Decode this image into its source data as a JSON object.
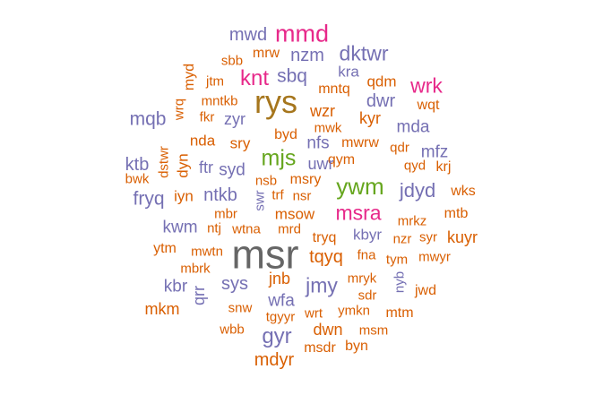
{
  "colors": {
    "orange": "#d95f02",
    "purple": "#7570b3",
    "magenta": "#e7298a",
    "green": "#66a61e",
    "gold": "#a6761d",
    "gray": "#666666"
  },
  "words": [
    {
      "text": "mwd",
      "color": "purple",
      "rot": false
    },
    {
      "text": "mmd",
      "color": "magenta",
      "rot": false
    },
    {
      "text": "sbb",
      "color": "orange",
      "rot": false
    },
    {
      "text": "mrw",
      "color": "orange",
      "rot": false
    },
    {
      "text": "nzm",
      "color": "purple",
      "rot": false
    },
    {
      "text": "dktwr",
      "color": "purple",
      "rot": false
    },
    {
      "text": "myd",
      "color": "orange",
      "rot": true
    },
    {
      "text": "knt",
      "color": "magenta",
      "rot": false
    },
    {
      "text": "sbq",
      "color": "purple",
      "rot": false
    },
    {
      "text": "kra",
      "color": "purple",
      "rot": false
    },
    {
      "text": "qdm",
      "color": "orange",
      "rot": false
    },
    {
      "text": "jtm",
      "color": "orange",
      "rot": false
    },
    {
      "text": "mntq",
      "color": "orange",
      "rot": false
    },
    {
      "text": "wrk",
      "color": "magenta",
      "rot": false
    },
    {
      "text": "mntkb",
      "color": "orange",
      "rot": false
    },
    {
      "text": "rys",
      "color": "gold",
      "rot": false
    },
    {
      "text": "dwr",
      "color": "purple",
      "rot": false
    },
    {
      "text": "wqt",
      "color": "orange",
      "rot": false
    },
    {
      "text": "wrq",
      "color": "orange",
      "rot": true
    },
    {
      "text": "mqb",
      "color": "purple",
      "rot": false
    },
    {
      "text": "fkr",
      "color": "orange",
      "rot": false
    },
    {
      "text": "zyr",
      "color": "purple",
      "rot": false
    },
    {
      "text": "wzr",
      "color": "orange",
      "rot": false
    },
    {
      "text": "kyr",
      "color": "orange",
      "rot": false
    },
    {
      "text": "mda",
      "color": "purple",
      "rot": false
    },
    {
      "text": "mwk",
      "color": "orange",
      "rot": false
    },
    {
      "text": "byd",
      "color": "orange",
      "rot": false
    },
    {
      "text": "nda",
      "color": "orange",
      "rot": false
    },
    {
      "text": "sry",
      "color": "orange",
      "rot": false
    },
    {
      "text": "nfs",
      "color": "purple",
      "rot": false
    },
    {
      "text": "mwrw",
      "color": "orange",
      "rot": false
    },
    {
      "text": "qdr",
      "color": "orange",
      "rot": false
    },
    {
      "text": "mfz",
      "color": "purple",
      "rot": false
    },
    {
      "text": "dstwr",
      "color": "orange",
      "rot": true
    },
    {
      "text": "mjs",
      "color": "green",
      "rot": false
    },
    {
      "text": "qym",
      "color": "orange",
      "rot": false
    },
    {
      "text": "ktb",
      "color": "purple",
      "rot": false
    },
    {
      "text": "dyn",
      "color": "orange",
      "rot": true
    },
    {
      "text": "ftr",
      "color": "purple",
      "rot": false
    },
    {
      "text": "uwr",
      "color": "purple",
      "rot": false
    },
    {
      "text": "qyd",
      "color": "orange",
      "rot": false
    },
    {
      "text": "krj",
      "color": "orange",
      "rot": false
    },
    {
      "text": "bwk",
      "color": "orange",
      "rot": false
    },
    {
      "text": "syd",
      "color": "purple",
      "rot": false
    },
    {
      "text": "nsb",
      "color": "orange",
      "rot": false
    },
    {
      "text": "msry",
      "color": "orange",
      "rot": false
    },
    {
      "text": "ywm",
      "color": "green",
      "rot": false
    },
    {
      "text": "jdyd",
      "color": "purple",
      "rot": false
    },
    {
      "text": "fryq",
      "color": "purple",
      "rot": false
    },
    {
      "text": "iyn",
      "color": "orange",
      "rot": false
    },
    {
      "text": "ntkb",
      "color": "purple",
      "rot": false
    },
    {
      "text": "trf",
      "color": "orange",
      "rot": false
    },
    {
      "text": "nsr",
      "color": "orange",
      "rot": false
    },
    {
      "text": "wks",
      "color": "orange",
      "rot": false
    },
    {
      "text": "swr",
      "color": "purple",
      "rot": true
    },
    {
      "text": "mbr",
      "color": "orange",
      "rot": false
    },
    {
      "text": "msow",
      "color": "orange",
      "rot": false
    },
    {
      "text": "msra",
      "color": "magenta",
      "rot": false
    },
    {
      "text": "mtb",
      "color": "orange",
      "rot": false
    },
    {
      "text": "kwm",
      "color": "purple",
      "rot": false
    },
    {
      "text": "ntj",
      "color": "orange",
      "rot": false
    },
    {
      "text": "wtna",
      "color": "orange",
      "rot": false
    },
    {
      "text": "mrd",
      "color": "orange",
      "rot": false
    },
    {
      "text": "mrkz",
      "color": "orange",
      "rot": false
    },
    {
      "text": "tryq",
      "color": "orange",
      "rot": false
    },
    {
      "text": "kbyr",
      "color": "purple",
      "rot": false
    },
    {
      "text": "nzr",
      "color": "orange",
      "rot": false
    },
    {
      "text": "syr",
      "color": "orange",
      "rot": false
    },
    {
      "text": "kuyr",
      "color": "orange",
      "rot": false
    },
    {
      "text": "msr",
      "color": "gray",
      "rot": false
    },
    {
      "text": "ytm",
      "color": "orange",
      "rot": false
    },
    {
      "text": "mwtn",
      "color": "orange",
      "rot": false
    },
    {
      "text": "tqyq",
      "color": "orange",
      "rot": false
    },
    {
      "text": "fna",
      "color": "orange",
      "rot": false
    },
    {
      "text": "tym",
      "color": "orange",
      "rot": false
    },
    {
      "text": "mwyr",
      "color": "orange",
      "rot": false
    },
    {
      "text": "mbrk",
      "color": "orange",
      "rot": false
    },
    {
      "text": "kbr",
      "color": "purple",
      "rot": false
    },
    {
      "text": "qrr",
      "color": "purple",
      "rot": true
    },
    {
      "text": "sys",
      "color": "purple",
      "rot": false
    },
    {
      "text": "jnb",
      "color": "orange",
      "rot": false
    },
    {
      "text": "jmy",
      "color": "purple",
      "rot": false
    },
    {
      "text": "mryk",
      "color": "orange",
      "rot": false
    },
    {
      "text": "nyb",
      "color": "purple",
      "rot": true
    },
    {
      "text": "jwd",
      "color": "orange",
      "rot": false
    },
    {
      "text": "sdr",
      "color": "orange",
      "rot": false
    },
    {
      "text": "wfa",
      "color": "purple",
      "rot": false
    },
    {
      "text": "mkm",
      "color": "orange",
      "rot": false
    },
    {
      "text": "snw",
      "color": "orange",
      "rot": false
    },
    {
      "text": "tgyyr",
      "color": "orange",
      "rot": false
    },
    {
      "text": "wrt",
      "color": "orange",
      "rot": false
    },
    {
      "text": "ymkn",
      "color": "orange",
      "rot": false
    },
    {
      "text": "mtm",
      "color": "orange",
      "rot": false
    },
    {
      "text": "wbb",
      "color": "orange",
      "rot": false
    },
    {
      "text": "gyr",
      "color": "purple",
      "rot": false
    },
    {
      "text": "dwn",
      "color": "orange",
      "rot": false
    },
    {
      "text": "msm",
      "color": "orange",
      "rot": false
    },
    {
      "text": "msdr",
      "color": "orange",
      "rot": false
    },
    {
      "text": "byn",
      "color": "orange",
      "rot": false
    },
    {
      "text": "mdyr",
      "color": "orange",
      "rot": false
    }
  ]
}
